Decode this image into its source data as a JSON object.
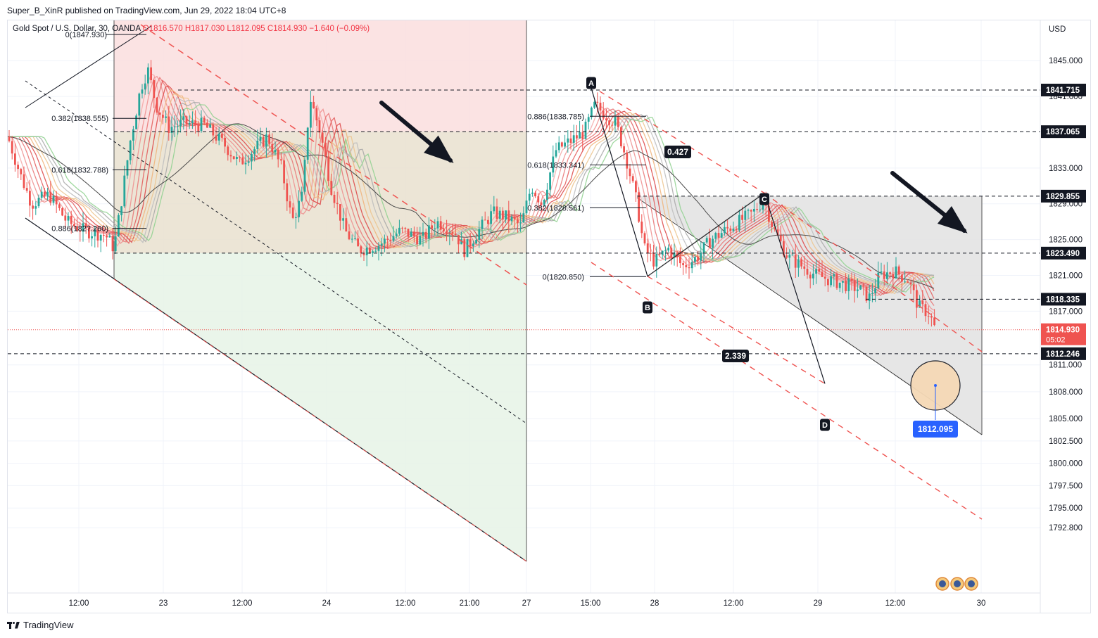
{
  "header": {
    "publisher": "Super_B_XinR published on TradingView.com, Jun 29, 2022 18:04 UTC+8"
  },
  "legend": {
    "symbol": "Gold Spot / U.S. Dollar, 30, OANDA",
    "open": "O1816.570",
    "high": "H1817.030",
    "low": "L1812.095",
    "close": "C1814.930",
    "change": "−1.640 (−0.09%)"
  },
  "footer": {
    "brand": "TradingView"
  },
  "colors": {
    "up": "#26a69a",
    "down": "#ef5350",
    "dark_label": "#131722",
    "price_label": "#ef5350",
    "blue_label": "#2962ff"
  },
  "chart_data": {
    "type": "candlestick",
    "currency": "USD",
    "y_ticks": [
      "1845.000",
      "1841.000",
      "1833.000",
      "1829.000",
      "1825.000",
      "1821.000",
      "1817.000",
      "1811.000",
      "1808.000",
      "1805.000",
      "1802.500",
      "1800.000",
      "1797.500",
      "1795.000",
      "1792.800"
    ],
    "x_ticks": [
      "12:00",
      "23",
      "12:00",
      "24",
      "12:00",
      "21:00",
      "27",
      "15:00",
      "28",
      "12:00",
      "29",
      "12:00",
      "30"
    ],
    "price_labels": [
      {
        "value": "1841.715",
        "style": "dark"
      },
      {
        "value": "1837.065",
        "style": "dark"
      },
      {
        "value": "1829.855",
        "style": "dark"
      },
      {
        "value": "1823.490",
        "style": "dark"
      },
      {
        "value": "1818.335",
        "style": "dark"
      },
      {
        "value": "1814.930",
        "style": "red",
        "countdown": "05:02"
      },
      {
        "value": "1812.246",
        "style": "dark"
      }
    ],
    "horizontal_levels": [
      1841.715,
      1837.065,
      1829.855,
      1823.49,
      1818.335,
      1812.246
    ],
    "current_price": 1814.93,
    "fib_left": [
      {
        "label": "0(1847.930)",
        "value": 1847.93
      },
      {
        "label": "0.382(1838.555)",
        "value": 1838.555
      },
      {
        "label": "0.618(1832.788)",
        "value": 1832.788
      },
      {
        "label": "0.886(182?.260)",
        "value": 1826.26
      }
    ],
    "fib_right": [
      {
        "label": "0.886(1838.785)",
        "value": 1838.785
      },
      {
        "label": "0.618(1833.341)",
        "value": 1833.341
      },
      {
        "label": "0.382(1828.561)",
        "value": 1828.561
      },
      {
        "label": "0(1820.850)",
        "value": 1820.85
      }
    ],
    "pattern_points": [
      {
        "name": "A",
        "value": 1842.2
      },
      {
        "name": "B",
        "value": 1820.9
      },
      {
        "name": "C",
        "value": 1830.2
      },
      {
        "name": "D",
        "value": 1808.9
      }
    ],
    "pattern_ratios": [
      "0.427",
      "2.339"
    ],
    "target_label": "1812.095",
    "ylim": [
      1792.0,
      1849.5
    ]
  }
}
